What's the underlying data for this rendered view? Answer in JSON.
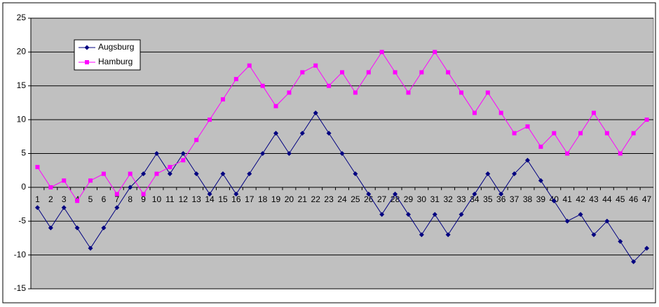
{
  "chart_data": {
    "type": "line",
    "categories": [
      "1",
      "2",
      "3",
      "4",
      "5",
      "6",
      "7",
      "8",
      "9",
      "10",
      "11",
      "12",
      "13",
      "14",
      "15",
      "16",
      "17",
      "18",
      "19",
      "20",
      "21",
      "22",
      "23",
      "24",
      "25",
      "26",
      "27",
      "28",
      "29",
      "30",
      "31",
      "32",
      "33",
      "34",
      "35",
      "36",
      "37",
      "38",
      "39",
      "40",
      "41",
      "42",
      "43",
      "44",
      "45",
      "46",
      "47"
    ],
    "series": [
      {
        "name": "Augsburg",
        "color": "#000080",
        "marker": "diamond",
        "values": [
          -3,
          -6,
          -3,
          -6,
          -9,
          -6,
          -3,
          0,
          2,
          5,
          2,
          5,
          2,
          -1,
          2,
          -1,
          2,
          5,
          8,
          5,
          8,
          11,
          8,
          5,
          2,
          -1,
          -4,
          -1,
          -4,
          -7,
          -4,
          -7,
          -4,
          -1,
          2,
          -1,
          2,
          4,
          1,
          -2,
          -5,
          -4,
          -7,
          -5,
          -8,
          -11,
          -9
        ]
      },
      {
        "name": "Hamburg",
        "color": "#ff00ff",
        "marker": "square",
        "values": [
          3,
          0,
          1,
          -2,
          1,
          2,
          -1,
          2,
          -1,
          2,
          3,
          4,
          7,
          10,
          13,
          16,
          18,
          15,
          12,
          14,
          17,
          18,
          15,
          17,
          14,
          17,
          20,
          17,
          14,
          17,
          20,
          17,
          14,
          11,
          14,
          11,
          8,
          9,
          6,
          8,
          5,
          8,
          11,
          8,
          5,
          8,
          10
        ]
      }
    ],
    "ylim": [
      -15,
      25
    ],
    "yticks": [
      -15,
      -10,
      -5,
      0,
      5,
      10,
      15,
      20,
      25
    ],
    "grid": true,
    "plot_background": "#c0c0c0",
    "legend": "top-left"
  }
}
